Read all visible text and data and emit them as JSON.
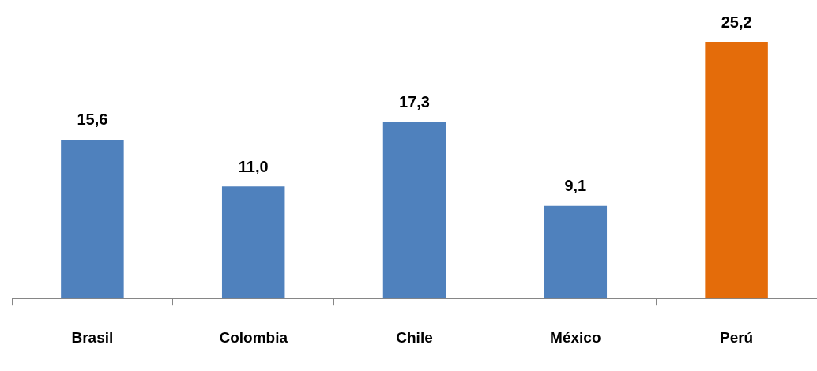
{
  "chart_data": {
    "type": "bar",
    "categories": [
      "Brasil",
      "Colombia",
      "Chile",
      "México",
      "Perú"
    ],
    "values": [
      15.6,
      11.0,
      17.3,
      9.1,
      25.2
    ],
    "colors": [
      "#4f81bd",
      "#4f81bd",
      "#4f81bd",
      "#4f81bd",
      "#e46c0a"
    ],
    "value_labels": [
      "15,6",
      "11,0",
      "17,3",
      "9,1",
      "25,2"
    ]
  }
}
